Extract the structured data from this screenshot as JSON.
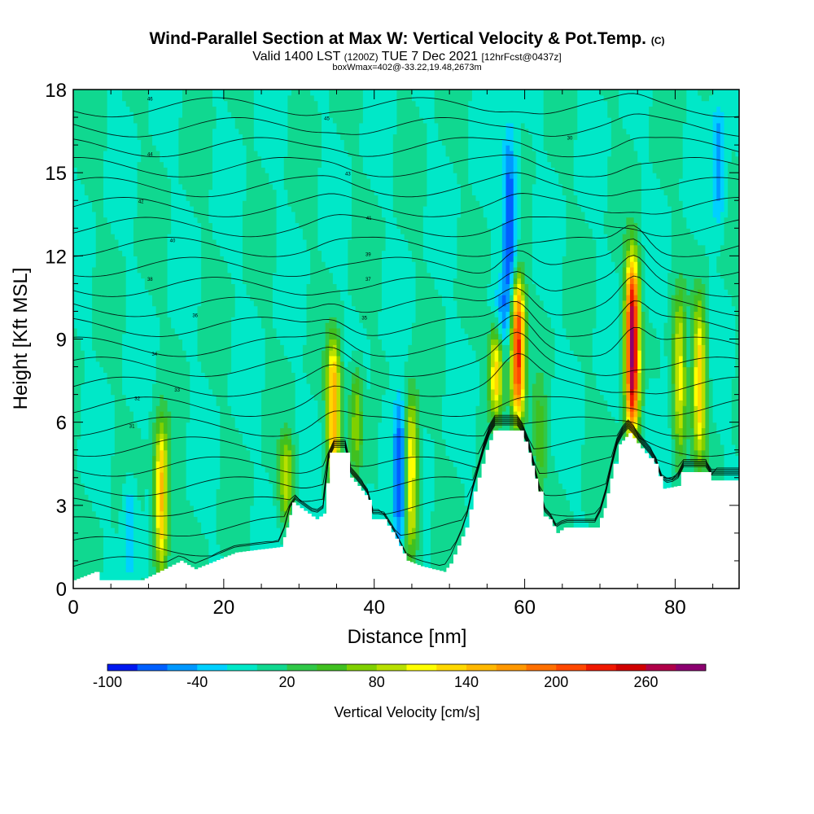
{
  "header": {
    "title": "Wind-Parallel Section at Max W: Vertical Velocity & Pot.Temp.",
    "copyright": "(C)",
    "subtitle_main": "Valid 1400 LST",
    "subtitle_utc": "(1200Z)",
    "subtitle_date": "TUE 7 Dec 2021",
    "subtitle_fcst": "[12hrFcst@0437z]",
    "boxinfo": "boxWmax=402@-33.22,19.48,2673m"
  },
  "chart_data": {
    "type": "heatmap",
    "xlabel": "Distance [nm]",
    "ylabel": "Height [Kft MSL]",
    "xlim": [
      0,
      88.5
    ],
    "ylim": [
      0,
      18
    ],
    "xticks": [
      0,
      20,
      40,
      60,
      80
    ],
    "yticks": [
      0,
      3,
      6,
      9,
      12,
      15,
      18
    ],
    "background_value": 0,
    "updrafts": [
      {
        "x": 11.7,
        "y_bottom": 0.4,
        "y_top": 6.0,
        "peak": 150
      },
      {
        "x": 28.3,
        "y_bottom": 2.5,
        "y_top": 5.5,
        "peak": 90
      },
      {
        "x": 34.6,
        "y_bottom": 4.0,
        "y_top": 9.0,
        "peak": 160
      },
      {
        "x": 37.6,
        "y_bottom": 4.2,
        "y_top": 8.0,
        "peak": 80
      },
      {
        "x": 44.9,
        "y_bottom": 1.2,
        "y_top": 7.0,
        "peak": 130
      },
      {
        "x": 56.2,
        "y_bottom": 6.2,
        "y_top": 9.5,
        "peak": 130
      },
      {
        "x": 59.1,
        "y_bottom": 6.0,
        "y_top": 11.2,
        "peak": 230
      },
      {
        "x": 62.0,
        "y_bottom": 3.0,
        "y_top": 7.5,
        "peak": 45
      },
      {
        "x": 74.3,
        "y_bottom": 5.5,
        "y_top": 12.0,
        "peak": 280
      },
      {
        "x": 80.6,
        "y_bottom": 4.5,
        "y_top": 10.5,
        "peak": 110
      },
      {
        "x": 83.2,
        "y_bottom": 4.5,
        "y_top": 10.5,
        "peak": 130
      }
    ],
    "downdrafts": [
      {
        "x": 7.5,
        "y_bottom": 0.4,
        "y_top": 4.0,
        "peak": -45
      },
      {
        "x": 43.4,
        "y_bottom": 1.5,
        "y_top": 7.0,
        "peak": -85
      },
      {
        "x": 41.5,
        "y_bottom": 3.5,
        "y_top": 7.0,
        "peak": -20
      },
      {
        "x": 58.0,
        "y_bottom": 10.0,
        "y_top": 16.5,
        "peak": -85
      },
      {
        "x": 57.0,
        "y_bottom": 8.5,
        "y_top": 11.0,
        "peak": -40
      },
      {
        "x": 76.8,
        "y_bottom": 5.0,
        "y_top": 7.5,
        "peak": -25
      },
      {
        "x": 81.8,
        "y_bottom": 8.0,
        "y_top": 10.0,
        "peak": -30
      },
      {
        "x": 85.8,
        "y_bottom": 13.0,
        "y_top": 17.5,
        "peak": -55
      }
    ],
    "theta_contour_labels": [
      "46",
      "45",
      "44",
      "43",
      "42",
      "41",
      "40",
      "39",
      "38",
      "37",
      "36",
      "35",
      "34",
      "33",
      "32",
      "31",
      "30"
    ],
    "terrain_height_kft": [
      [
        0,
        0.3
      ],
      [
        2.8,
        0.6
      ],
      [
        3.5,
        0.3
      ],
      [
        9,
        0.3
      ],
      [
        10.5,
        0.5
      ],
      [
        14.2,
        1.0
      ],
      [
        16.1,
        0.7
      ],
      [
        21.5,
        1.3
      ],
      [
        27.5,
        1.5
      ],
      [
        28.3,
        2.2
      ],
      [
        29.1,
        3.1
      ],
      [
        32.2,
        2.5
      ],
      [
        33.2,
        2.7
      ],
      [
        34.1,
        4.9
      ],
      [
        36.3,
        4.9
      ],
      [
        36.8,
        4.0
      ],
      [
        37.8,
        3.7
      ],
      [
        39.2,
        3.2
      ],
      [
        39.7,
        2.5
      ],
      [
        41.2,
        2.5
      ],
      [
        42.8,
        1.8
      ],
      [
        44.3,
        1.0
      ],
      [
        46.2,
        0.8
      ],
      [
        49.2,
        0.6
      ],
      [
        50.0,
        0.9
      ],
      [
        52.1,
        2.2
      ],
      [
        53.2,
        3.5
      ],
      [
        54.8,
        5.0
      ],
      [
        55.8,
        5.7
      ],
      [
        59.3,
        5.7
      ],
      [
        60.5,
        4.9
      ],
      [
        61.8,
        3.5
      ],
      [
        62.5,
        2.6
      ],
      [
        63.2,
        2.5
      ],
      [
        64.2,
        2.0
      ],
      [
        65.2,
        2.2
      ],
      [
        69.5,
        2.2
      ],
      [
        70.5,
        2.9
      ],
      [
        71.8,
        4.5
      ],
      [
        72.5,
        5.2
      ],
      [
        73.8,
        5.6
      ],
      [
        76.5,
        4.7
      ],
      [
        77.2,
        4.5
      ],
      [
        78.4,
        3.6
      ],
      [
        80.3,
        3.7
      ],
      [
        80.8,
        4.2
      ],
      [
        84.2,
        4.2
      ],
      [
        84.8,
        3.9
      ],
      [
        88.5,
        3.9
      ]
    ],
    "colorbar": {
      "label": "Vertical Velocity [cm/s]",
      "levels": [
        -100,
        -80,
        -60,
        -40,
        -20,
        0,
        20,
        40,
        60,
        80,
        100,
        120,
        140,
        160,
        180,
        200,
        220,
        240,
        260,
        280,
        300
      ],
      "tick_labels": [
        "-100",
        "-40",
        "20",
        "80",
        "140",
        "200",
        "260"
      ],
      "colors": [
        "#0018f0",
        "#0060ff",
        "#0098ff",
        "#00d0ff",
        "#00e8c8",
        "#10d890",
        "#30c848",
        "#40c020",
        "#80d000",
        "#b8e000",
        "#ffff00",
        "#ffd800",
        "#ffb800",
        "#ff9800",
        "#ff7000",
        "#ff4800",
        "#f01800",
        "#d00000",
        "#b00048",
        "#8c0070"
      ]
    }
  }
}
